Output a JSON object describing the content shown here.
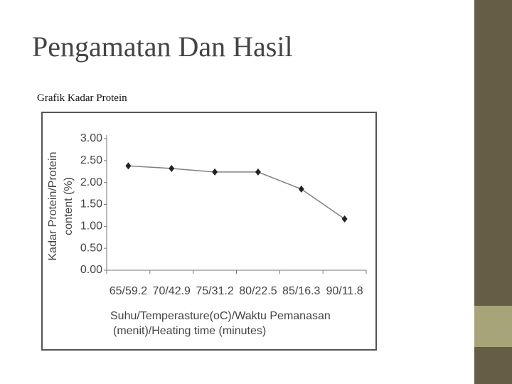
{
  "slide_title": "Pengamatan Dan Hasil",
  "slide_subtitle": "Grafik Kadar Protein",
  "chart_data": {
    "type": "line",
    "categories": [
      "65/59.2",
      "70/42.9",
      "75/31.2",
      "80/22.5",
      "85/16.3",
      "90/11.8"
    ],
    "values": [
      2.38,
      2.32,
      2.24,
      2.24,
      1.85,
      1.17
    ],
    "color": "#222222",
    "line_color": "#808080",
    "ylim": [
      0,
      3
    ],
    "yticks": [
      {
        "value": 0,
        "label": "0.00"
      },
      {
        "value": 0.5,
        "label": "0.50"
      },
      {
        "value": 1,
        "label": "1.00"
      },
      {
        "value": 1.5,
        "label": "1.50"
      },
      {
        "value": 2,
        "label": "2.00"
      },
      {
        "value": 2.5,
        "label": "2.50"
      },
      {
        "value": 3,
        "label": "3.00"
      }
    ],
    "ylabel": [
      "Kadar Protein/Protein",
      "content (%)"
    ],
    "xlabel": [
      "Suhu/Temperasture(oC)/Waktu Pemanasan",
      "(menit)/Heating time (minutes)"
    ],
    "grid": false
  }
}
